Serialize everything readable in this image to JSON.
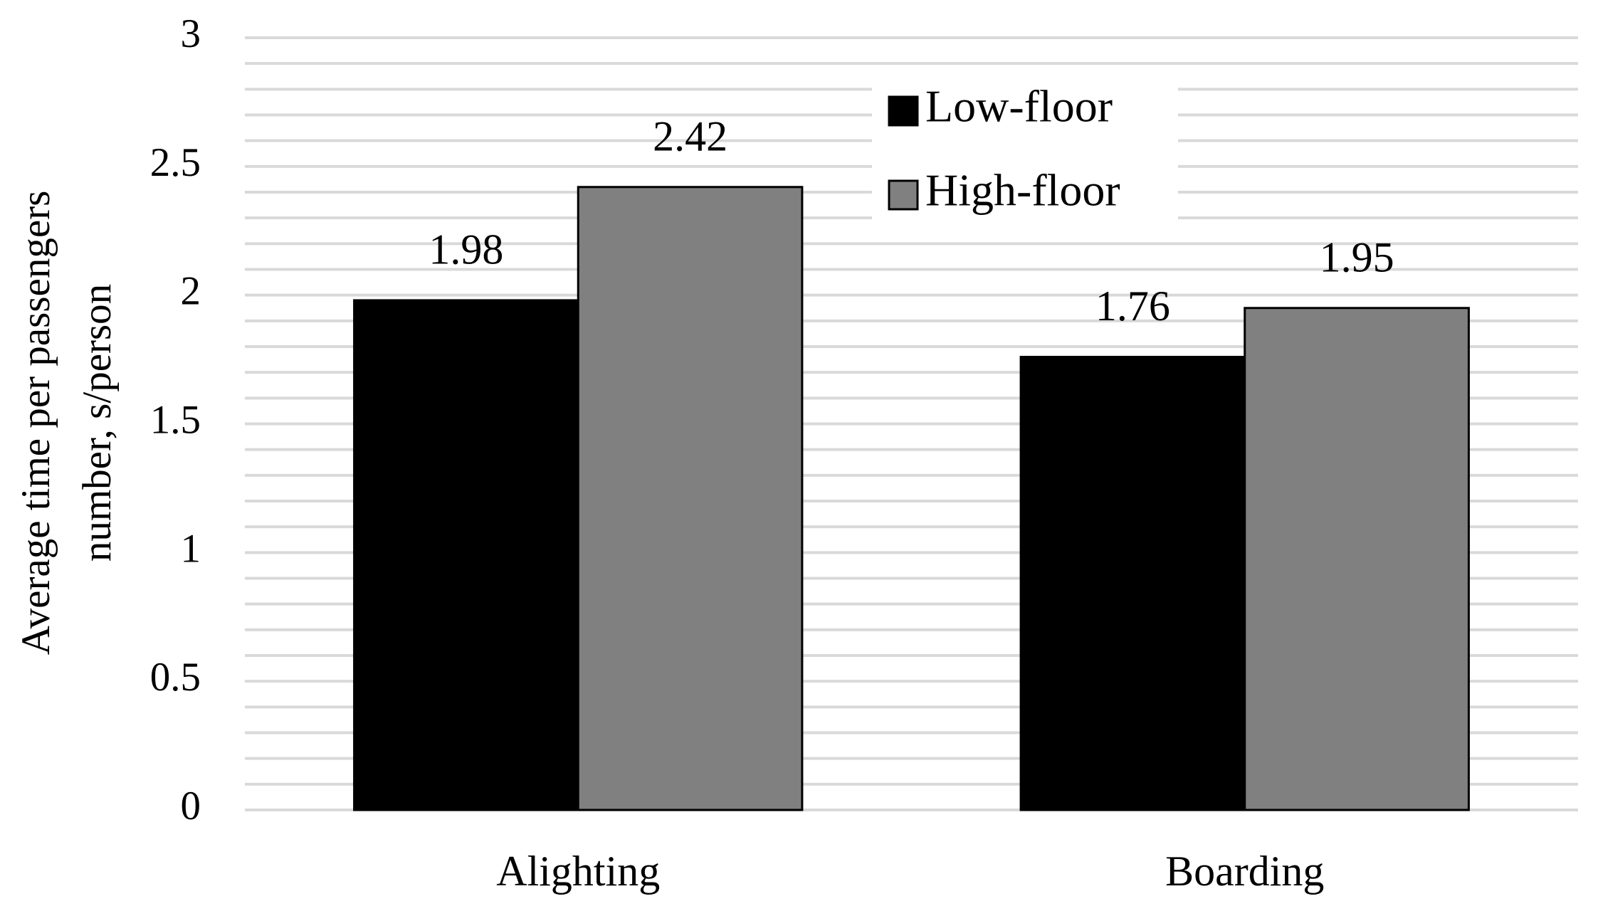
{
  "chart_data": {
    "type": "bar",
    "ylabel": [
      "Average time per passengers",
      "number, s/person"
    ],
    "categories": [
      "Alighting",
      "Boarding"
    ],
    "series": [
      {
        "name": "Low-floor",
        "color": "#000000",
        "values": [
          1.98,
          1.76
        ]
      },
      {
        "name": "High-floor",
        "color": "#808080",
        "values": [
          2.42,
          1.95
        ]
      }
    ],
    "ylim": [
      0,
      3
    ],
    "yticks": [
      0,
      0.5,
      1,
      1.5,
      2,
      2.5,
      3
    ],
    "minor_yticks": [
      0.1,
      0.2,
      0.3,
      0.4,
      0.6,
      0.7,
      0.8,
      0.9,
      1.1,
      1.2,
      1.3,
      1.4,
      1.6,
      1.7,
      1.8,
      1.9,
      2.1,
      2.2,
      2.3,
      2.4,
      2.6,
      2.7,
      2.8,
      2.9
    ],
    "grid": true,
    "legend": "top-center"
  }
}
